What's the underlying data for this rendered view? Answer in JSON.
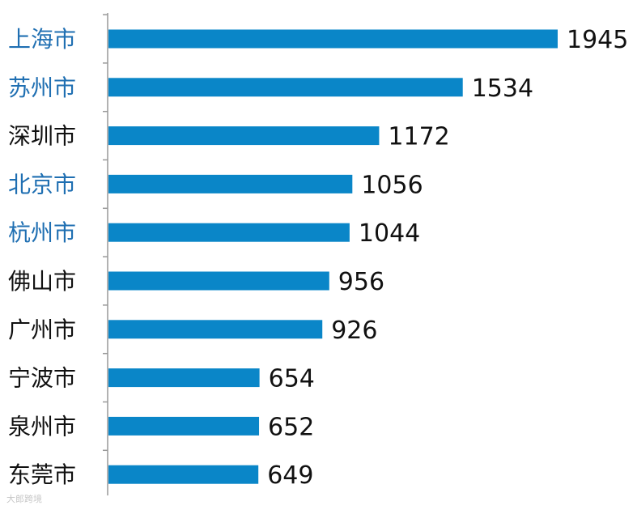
{
  "chart_data": {
    "type": "bar",
    "orientation": "horizontal",
    "categories": [
      "上海市",
      "苏州市",
      "深圳市",
      "北京市",
      "杭州市",
      "佛山市",
      "广州市",
      "宁波市",
      "泉州市",
      "东莞市"
    ],
    "values": [
      1945,
      1534,
      1172,
      1056,
      1044,
      956,
      926,
      654,
      652,
      649
    ],
    "highlighted_categories": [
      "上海市",
      "苏州市",
      "北京市",
      "杭州市"
    ],
    "xlim": [
      0,
      2000
    ],
    "grid": false,
    "legend": "none",
    "title": "",
    "xlabel": "",
    "ylabel": ""
  },
  "colors": {
    "bar": "#0a86c8",
    "label_highlight": "#1f6fb2",
    "label_default": "#111111",
    "axis": "#999999"
  },
  "watermark": "大郎跨境"
}
